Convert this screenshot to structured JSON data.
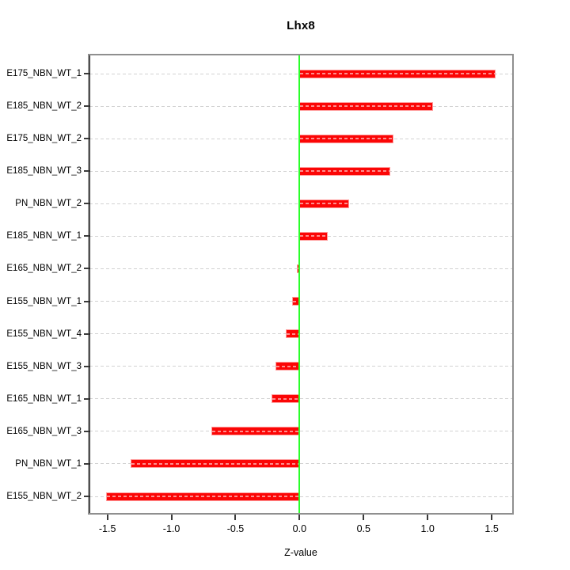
{
  "title": "Lhx8",
  "chart_data": {
    "type": "bar",
    "orientation": "horizontal",
    "title": "Lhx8",
    "xlabel": "Z-value",
    "ylabel": "",
    "categories": [
      "E175_NBN_WT_1",
      "E185_NBN_WT_2",
      "E175_NBN_WT_2",
      "E185_NBN_WT_3",
      "PN_NBN_WT_2",
      "E185_NBN_WT_1",
      "E165_NBN_WT_2",
      "E155_NBN_WT_1",
      "E155_NBN_WT_4",
      "E155_NBN_WT_3",
      "E165_NBN_WT_1",
      "E165_NBN_WT_3",
      "PN_NBN_WT_1",
      "E155_NBN_WT_2"
    ],
    "values": [
      1.53,
      1.04,
      0.73,
      0.71,
      0.39,
      0.22,
      -0.02,
      -0.06,
      -0.11,
      -0.19,
      -0.22,
      -0.69,
      -1.32,
      -1.51
    ],
    "xlim": [
      -1.64,
      1.66
    ],
    "xticks": [
      -1.5,
      -1.0,
      -0.5,
      0.0,
      0.5,
      1.0,
      1.5
    ],
    "xtick_labels": [
      "-1.5",
      "-1.0",
      "-0.5",
      "0.0",
      "0.5",
      "1.0",
      "1.5"
    ],
    "zero_line_x": 0,
    "grid": true,
    "legend_position": "none",
    "colors": {
      "bar_fill": "#fb0606",
      "bar_border": "#ff9c9c",
      "zero_line": "#2aff2a",
      "gridline": "#d2d2d2",
      "box_border": "#8f8f8f",
      "text": "#000000"
    }
  }
}
